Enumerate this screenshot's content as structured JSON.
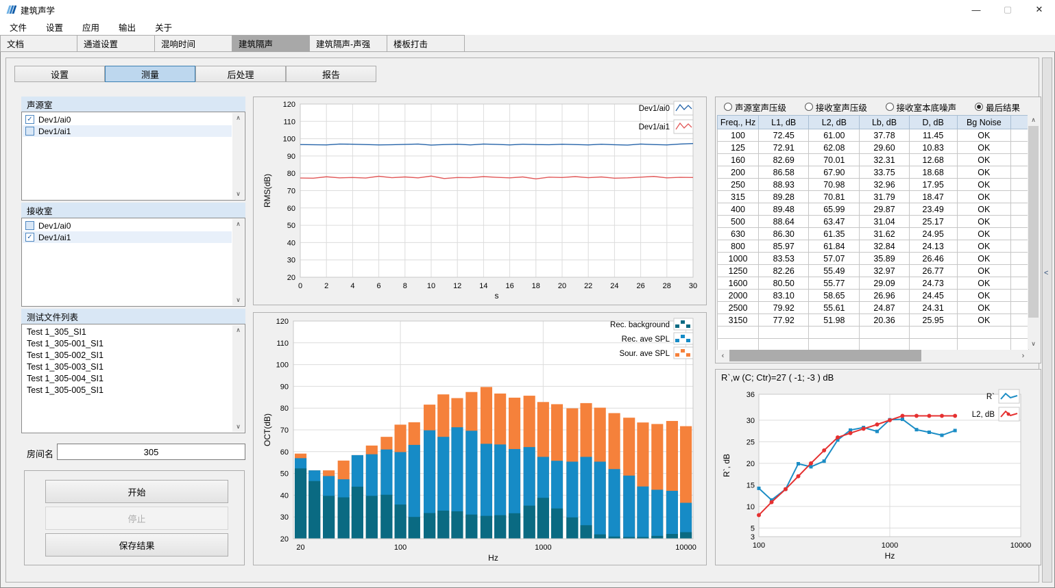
{
  "window": {
    "title": "建筑声学",
    "minimize": "—",
    "maximize": "▢",
    "close": "✕"
  },
  "menu": {
    "items": [
      {
        "id": "file",
        "label": "文件"
      },
      {
        "id": "settings",
        "label": "设置"
      },
      {
        "id": "apps",
        "label": "应用"
      },
      {
        "id": "output",
        "label": "输出"
      },
      {
        "id": "about",
        "label": "关于"
      }
    ]
  },
  "main_tabs": {
    "active": "building-insulation",
    "items": [
      {
        "id": "document",
        "label": "文档"
      },
      {
        "id": "channel-settings",
        "label": "通道设置"
      },
      {
        "id": "reverb-time",
        "label": "混响时间"
      },
      {
        "id": "building-insulation",
        "label": "建筑隔声"
      },
      {
        "id": "building-insulation-intensity",
        "label": "建筑隔声-声强"
      },
      {
        "id": "floor-impact",
        "label": "楼板打击"
      }
    ]
  },
  "sub_tabs": {
    "active": "measure",
    "items": [
      {
        "id": "setup",
        "label": "设置"
      },
      {
        "id": "measure",
        "label": "测量"
      },
      {
        "id": "post-process",
        "label": "后处理"
      },
      {
        "id": "report",
        "label": "报告"
      }
    ]
  },
  "left_panel": {
    "source_room": {
      "title": "声源室",
      "items": [
        {
          "label": "Dev1/ai0",
          "checked": true,
          "selected": false
        },
        {
          "label": "Dev1/ai1",
          "checked": false,
          "selected": true
        }
      ]
    },
    "receiving_room": {
      "title": "接收室",
      "items": [
        {
          "label": "Dev1/ai0",
          "checked": false,
          "selected": false
        },
        {
          "label": "Dev1/ai1",
          "checked": true,
          "selected": true
        }
      ]
    },
    "test_files": {
      "title": "测试文件列表",
      "items": [
        "Test 1_305_SI1",
        "Test 1_305-001_SI1",
        "Test 1_305-002_SI1",
        "Test 1_305-003_SI1",
        "Test 1_305-004_SI1",
        "Test 1_305-005_SI1"
      ]
    },
    "room_name": {
      "label": "房间名",
      "value": "305"
    },
    "buttons": {
      "start": "开始",
      "stop": "停止",
      "save": "保存结果"
    }
  },
  "right_panel": {
    "radios": {
      "selected": "final-result",
      "options": [
        {
          "id": "source-spl",
          "label": "声源室声压级"
        },
        {
          "id": "receiving-spl",
          "label": "接收室声压级"
        },
        {
          "id": "receiving-bg-noise",
          "label": "接收室本底噪声"
        },
        {
          "id": "final-result",
          "label": "最后结果"
        }
      ]
    },
    "table": {
      "columns": [
        "Freq., Hz",
        "L1, dB",
        "L2, dB",
        "Lb, dB",
        "D, dB",
        "Bg Noise"
      ],
      "rows": [
        [
          "100",
          "72.45",
          "61.00",
          "37.78",
          "11.45",
          "OK"
        ],
        [
          "125",
          "72.91",
          "62.08",
          "29.60",
          "10.83",
          "OK"
        ],
        [
          "160",
          "82.69",
          "70.01",
          "32.31",
          "12.68",
          "OK"
        ],
        [
          "200",
          "86.58",
          "67.90",
          "33.75",
          "18.68",
          "OK"
        ],
        [
          "250",
          "88.93",
          "70.98",
          "32.96",
          "17.95",
          "OK"
        ],
        [
          "315",
          "89.28",
          "70.81",
          "31.79",
          "18.47",
          "OK"
        ],
        [
          "400",
          "89.48",
          "65.99",
          "29.87",
          "23.49",
          "OK"
        ],
        [
          "500",
          "88.64",
          "63.47",
          "31.04",
          "25.17",
          "OK"
        ],
        [
          "630",
          "86.30",
          "61.35",
          "31.62",
          "24.95",
          "OK"
        ],
        [
          "800",
          "85.97",
          "61.84",
          "32.84",
          "24.13",
          "OK"
        ],
        [
          "1000",
          "83.53",
          "57.07",
          "35.89",
          "26.46",
          "OK"
        ],
        [
          "1250",
          "82.26",
          "55.49",
          "32.97",
          "26.77",
          "OK"
        ],
        [
          "1600",
          "80.50",
          "55.77",
          "29.09",
          "24.73",
          "OK"
        ],
        [
          "2000",
          "83.10",
          "58.65",
          "26.96",
          "24.45",
          "OK"
        ],
        [
          "2500",
          "79.92",
          "55.61",
          "24.87",
          "24.31",
          "OK"
        ],
        [
          "3150",
          "77.92",
          "51.98",
          "20.36",
          "25.95",
          "OK"
        ]
      ]
    },
    "result_text": "R`,w (C; Ctr)=27 ( -1; -3 ) dB"
  },
  "chart_data": [
    {
      "type": "line",
      "title": "RMS time history",
      "xlabel": "s",
      "ylabel": "RMS(dB)",
      "xlim": [
        0,
        30
      ],
      "xtick_step": 2,
      "x_step": 1,
      "ylim": [
        20,
        120
      ],
      "ytick_step": 10,
      "grid": true,
      "legend_position": "top-right",
      "series": [
        {
          "name": "Dev1/ai0",
          "color": "#2362A8",
          "values": [
            96.6,
            96.5,
            96.4,
            96.9,
            96.8,
            96.6,
            96.4,
            96.5,
            96.7,
            96.9,
            96.3,
            96.6,
            96.8,
            96.4,
            96.9,
            96.7,
            96.4,
            96.8,
            96.6,
            96.5,
            96.8,
            96.6,
            96.4,
            96.8,
            96.5,
            96.3,
            96.9,
            96.6,
            96.4,
            96.9,
            97.2
          ]
        },
        {
          "name": "Dev1/ai1",
          "color": "#E15757",
          "values": [
            77.3,
            77.2,
            78.0,
            77.4,
            77.6,
            77.3,
            78.3,
            77.5,
            77.9,
            77.4,
            78.4,
            77.0,
            77.6,
            77.5,
            78.1,
            77.7,
            77.4,
            77.9,
            76.8,
            77.8,
            77.6,
            78.1,
            77.5,
            77.9,
            77.2,
            77.4,
            77.8,
            78.2,
            77.4,
            77.7,
            77.6
          ]
        }
      ]
    },
    {
      "type": "bar",
      "title": "Octave band SPL",
      "xlabel": "Hz",
      "ylabel": "OCT(dB)",
      "x_scale": "log",
      "xticks": [
        20,
        100,
        1000,
        10000
      ],
      "ylim": [
        20,
        120
      ],
      "ytick_step": 10,
      "grid": true,
      "legend_position": "top-right",
      "categories": [
        20,
        25,
        31.5,
        40,
        50,
        63,
        80,
        100,
        125,
        160,
        200,
        250,
        315,
        400,
        500,
        630,
        800,
        1000,
        1250,
        1600,
        2000,
        2500,
        3150,
        4000,
        5000,
        6300,
        8000,
        10000
      ],
      "series": [
        {
          "name": "Rec. background",
          "color": "#0A6A82",
          "values": [
            52.3,
            46.5,
            39.7,
            39.0,
            43.9,
            39.7,
            40.2,
            35.7,
            30.0,
            31.8,
            32.9,
            32.6,
            31.1,
            30.5,
            30.8,
            31.7,
            35.2,
            38.8,
            33.9,
            29.8,
            26.2,
            22.0,
            21.0,
            20.8,
            20.8,
            21.3,
            22.2,
            23.0
          ]
        },
        {
          "name": "Rec. ave SPL",
          "color": "#168BC6",
          "values": [
            57.0,
            51.4,
            48.8,
            47.3,
            58.4,
            58.8,
            61.0,
            59.8,
            63.1,
            69.8,
            66.8,
            71.2,
            69.6,
            63.6,
            63.3,
            61.2,
            62.1,
            57.6,
            55.8,
            55.4,
            57.6,
            55.4,
            52.0,
            49.0,
            44.0,
            42.5,
            42.0,
            36.5
          ]
        },
        {
          "name": "Sour. ave SPL",
          "color": "#F5813B",
          "values": [
            59.1,
            51.4,
            51.4,
            55.9,
            58.4,
            62.8,
            66.8,
            72.4,
            73.5,
            81.6,
            86.3,
            84.6,
            87.4,
            89.7,
            86.7,
            84.8,
            85.7,
            82.8,
            81.8,
            79.9,
            82.3,
            80.2,
            77.7,
            75.6,
            73.4,
            72.7,
            74.1,
            71.7
          ]
        }
      ]
    },
    {
      "type": "line",
      "title": "R` rating curve",
      "xlabel": "Hz",
      "ylabel": "R`, dB",
      "x_scale": "log",
      "x": [
        100,
        125,
        160,
        200,
        250,
        315,
        400,
        500,
        630,
        800,
        1000,
        1250,
        1600,
        2000,
        2500,
        3150
      ],
      "xlim": [
        100,
        10000
      ],
      "xticks": [
        100,
        1000,
        10000
      ],
      "ylim": [
        3,
        36
      ],
      "yticks": [
        3,
        5,
        10,
        15,
        20,
        25,
        30,
        36
      ],
      "grid": true,
      "legend_position": "top-right",
      "series": [
        {
          "name": "R`",
          "color": "#1C8DC5",
          "marker": "square",
          "values": [
            14.2,
            11.5,
            14.0,
            19.9,
            19.2,
            20.5,
            25.4,
            27.7,
            28.3,
            27.4,
            30.1,
            30.2,
            27.8,
            27.2,
            26.5,
            27.6
          ]
        },
        {
          "name": "L2, dB",
          "color": "#E53030",
          "marker": "circle",
          "values": [
            8,
            11,
            14,
            17,
            20,
            23,
            26,
            27,
            28,
            29,
            30,
            31,
            31,
            31,
            31,
            31
          ]
        }
      ]
    }
  ]
}
